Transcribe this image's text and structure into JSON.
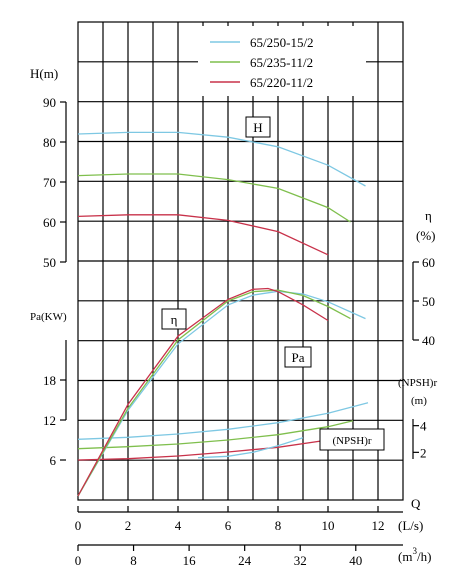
{
  "chart_data": {
    "type": "line",
    "legend_position": "top-right",
    "series": [
      {
        "name": "65/250-15/2",
        "color": "#7ec8e3"
      },
      {
        "name": "65/235-11/2",
        "color": "#7fbf4d"
      },
      {
        "name": "65/220-11/2",
        "color": "#c8324a"
      }
    ],
    "x_axis": {
      "label": "Q",
      "unit": "(L/s)",
      "range": [
        0,
        13
      ],
      "ticks": [
        "0",
        "2",
        "4",
        "6",
        "8",
        "10",
        "12"
      ]
    },
    "x2_axis": {
      "unit_text": "(m",
      "unit_sup": "3",
      "unit_tail": "/h)",
      "range_m3h": [
        0,
        46.8
      ],
      "ticks": [
        "0",
        "8",
        "16",
        "24",
        "32",
        "40"
      ]
    },
    "panels": {
      "head": {
        "label": "H(m)",
        "tag": "H",
        "range": [
          50,
          90
        ],
        "ticks": [
          "90",
          "80",
          "70",
          "60",
          "50"
        ],
        "series": [
          {
            "q": [
              0,
              2,
              4,
              6,
              8,
              10,
              11.5
            ],
            "v": [
              82,
              82.4,
              82.4,
              81.2,
              78.8,
              74.2,
              69
            ]
          },
          {
            "q": [
              0,
              2,
              4,
              6,
              8,
              10,
              10.9
            ],
            "v": [
              71.6,
              72,
              72,
              70.6,
              68.4,
              63.6,
              60
            ]
          },
          {
            "q": [
              0,
              2,
              4,
              6,
              8,
              10
            ],
            "v": [
              61.4,
              61.8,
              61.8,
              60.4,
              57.6,
              51.8
            ]
          }
        ]
      },
      "efficiency": {
        "label_symbol": "η",
        "label_unit": "(%)",
        "tag": "η",
        "range": [
          40,
          60
        ],
        "ticks": [
          "60",
          "50",
          "40"
        ],
        "series": [
          {
            "q": [
              0,
              2,
              4,
              6,
              7,
              8,
              9,
              10,
              11.5
            ],
            "v": [
              0,
              22,
              39,
              49,
              51.5,
              52.5,
              51.8,
              49.8,
              45.5
            ]
          },
          {
            "q": [
              0,
              2,
              4,
              6,
              7,
              8,
              9,
              10,
              10.9
            ],
            "v": [
              0,
              22.5,
              40,
              50,
              52.4,
              52.8,
              51.4,
              48.6,
              45.5
            ]
          },
          {
            "q": [
              0,
              2,
              4,
              6,
              7,
              7.6,
              8,
              9,
              10
            ],
            "v": [
              0,
              23.5,
              41,
              50.4,
              53,
              53.2,
              52.4,
              49,
              45
            ]
          }
        ]
      },
      "power": {
        "label": "Pa(KW)",
        "tag": "Pa",
        "range": [
          0,
          24
        ],
        "ticks": [
          "18",
          "12",
          "6"
        ],
        "series": [
          {
            "q": [
              0,
              2,
              4,
              6,
              8,
              10,
              11.6
            ],
            "v": [
              9.1,
              9.4,
              9.9,
              10.6,
              11.6,
              13,
              14.6
            ]
          },
          {
            "q": [
              0,
              2,
              4,
              6,
              8,
              10,
              11
            ],
            "v": [
              7.7,
              8,
              8.4,
              9,
              9.8,
              11,
              11.9
            ]
          },
          {
            "q": [
              0,
              2,
              4,
              6,
              8,
              10
            ],
            "v": [
              6,
              6.2,
              6.6,
              7.2,
              7.9,
              9
            ]
          }
        ]
      },
      "npsh": {
        "label": "(NPSH)r",
        "unit": "(m)",
        "tag": "(NPSH)r",
        "range": [
          0,
          6
        ],
        "ticks": [
          "4",
          "2"
        ],
        "series": [
          {
            "q": [
              4.8,
              6,
              7,
              8,
              9
            ],
            "v": [
              1.6,
              1.7,
              2,
              2.5,
              3.1
            ]
          }
        ]
      }
    }
  }
}
